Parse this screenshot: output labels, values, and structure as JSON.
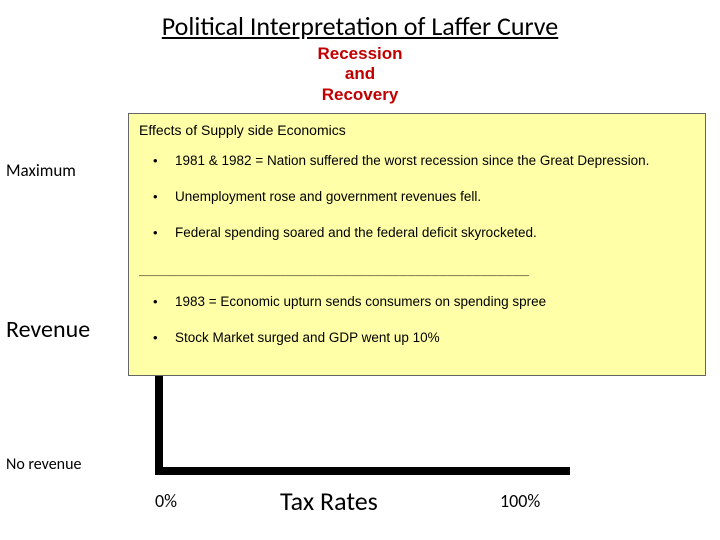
{
  "title": "Political Interpretation of Laffer Curve",
  "subtitle_lines": [
    "Recession",
    "and",
    "Recovery"
  ],
  "axes": {
    "y_max_label": "Maximum",
    "y_axis_label": "Revenue",
    "y_min_label": "No revenue",
    "x_min_label": "0%",
    "x_axis_label": "Tax Rates",
    "x_max_label": "100%",
    "axis_color": "#000000",
    "axis_thickness_px": 8
  },
  "panel": {
    "background_color": "#ffffa7",
    "border_color": "#666666",
    "header": "Effects of Supply side Economics",
    "bullets_top": [
      "1981 & 1982 = Nation suffered the worst recession since the Great Depression.",
      "Unemployment rose and government revenues fell.",
      "Federal spending soared and the federal deficit skyrocketed."
    ],
    "divider": "________________________________________________",
    "bullets_bottom": [
      "1983 = Economic upturn sends consumers on spending spree",
      "Stock Market surged and GDP went up 10%"
    ]
  },
  "colors": {
    "page_bg": "#ffffff",
    "title_color": "#000000",
    "subtitle_color": "#c00000"
  },
  "typography": {
    "title_fontsize_pt": 26,
    "subtitle_fontsize_pt": 17,
    "panel_fontsize_pt": 13.5,
    "axis_label_fontsize_pt": 24
  }
}
